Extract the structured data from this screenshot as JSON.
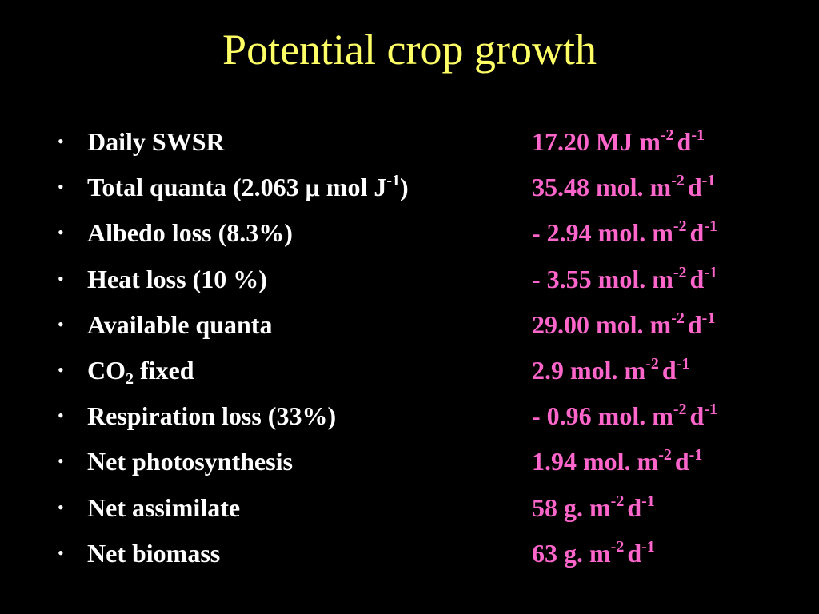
{
  "colors": {
    "background": "#000000",
    "title": "#FFFF66",
    "label": "#FFFFFF",
    "value": "#FF66CC"
  },
  "title": "Potential crop growth",
  "bullet_glyph": "•",
  "rows": [
    {
      "label": "Daily SWSR",
      "value": "17.20 MJ m",
      "unit_exp1": "-2",
      "unit_day": "d",
      "unit_exp2": "-1"
    },
    {
      "label_pre": "Total quanta (2.063 ",
      "label_mu": "μ",
      "label_mid": " mol J",
      "label_sup": "-1",
      "label_post": ")",
      "value": "35.48 mol. m",
      "unit_exp1": "-2",
      "unit_day": "d",
      "unit_exp2": "-1"
    },
    {
      "label": "Albedo loss (8.3%)",
      "value": "- 2.94 mol. m",
      "unit_exp1": "-2",
      "unit_day": "d",
      "unit_exp2": "-1"
    },
    {
      "label": "Heat loss (10 %)",
      "value": "- 3.55 mol. m",
      "unit_exp1": "-2",
      "unit_day": "d",
      "unit_exp2": "-1"
    },
    {
      "label": "Available quanta",
      "value": "29.00 mol. m",
      "unit_exp1": "-2",
      "unit_day": "d",
      "unit_exp2": "-1"
    },
    {
      "label_pre": "CO",
      "label_sub": "2",
      "label_post": " fixed",
      "value": "2.9 mol. m",
      "unit_exp1": "-2",
      "unit_day": "d",
      "unit_exp2": "-1"
    },
    {
      "label": "Respiration loss (33%)",
      "value": "- 0.96 mol. m",
      "unit_exp1": "-2",
      "unit_day": "d",
      "unit_exp2": "-1"
    },
    {
      "label": "Net photosynthesis",
      "value": "1.94 mol. m",
      "unit_exp1": "-2",
      "unit_day": "d",
      "unit_exp2": "-1"
    },
    {
      "label": "Net assimilate",
      "value": "58 g. m",
      "unit_exp1": "-2",
      "unit_day": "d",
      "unit_exp2": "-1"
    },
    {
      "label": "Net biomass",
      "value": "63 g. m",
      "unit_exp1": "-2",
      "unit_day": "d",
      "unit_exp2": "-1"
    }
  ]
}
